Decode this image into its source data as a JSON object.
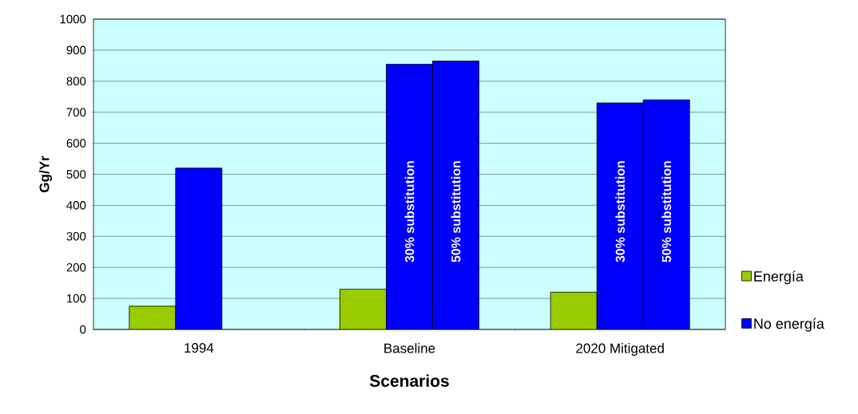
{
  "chart_data": {
    "type": "bar",
    "xlabel": "Scenarios",
    "ylabel": "Gg/Yr",
    "categories": [
      "1994",
      "Baseline",
      "2020 Mitigated"
    ],
    "series": [
      {
        "name": "Energía",
        "color": "#99cc00",
        "values": [
          75,
          130,
          120
        ]
      },
      {
        "name": "No energía",
        "color": "#0000ff",
        "values": [
          520,
          855,
          730
        ]
      },
      {
        "color": "#0000ff",
        "values": [
          null,
          865,
          740
        ]
      }
    ],
    "ylim": [
      0,
      1000
    ],
    "yticks": [
      0,
      100,
      200,
      300,
      400,
      500,
      600,
      700,
      800,
      900,
      1000
    ],
    "grid": "y",
    "legend": "right",
    "annotations": [
      "30% substitution",
      "50% substitution",
      "30% substitution",
      "50% substitution"
    ]
  }
}
